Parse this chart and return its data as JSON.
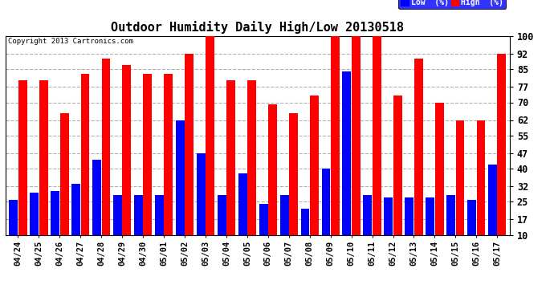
{
  "title": "Outdoor Humidity Daily High/Low 20130518",
  "copyright": "Copyright 2013 Cartronics.com",
  "legend_low": "Low  (%)",
  "legend_high": "High  (%)",
  "dates": [
    "04/24",
    "04/25",
    "04/26",
    "04/27",
    "04/28",
    "04/29",
    "04/30",
    "05/01",
    "05/02",
    "05/03",
    "05/04",
    "05/05",
    "05/06",
    "05/07",
    "05/08",
    "05/09",
    "05/10",
    "05/11",
    "05/12",
    "05/13",
    "05/14",
    "05/15",
    "05/16",
    "05/17"
  ],
  "high": [
    80,
    80,
    65,
    83,
    90,
    87,
    83,
    83,
    92,
    100,
    80,
    80,
    69,
    65,
    73,
    100,
    100,
    100,
    73,
    90,
    70,
    62,
    62,
    92
  ],
  "low": [
    26,
    29,
    30,
    33,
    44,
    28,
    28,
    28,
    62,
    47,
    28,
    38,
    24,
    28,
    22,
    40,
    84,
    28,
    27,
    27,
    27,
    28,
    26,
    42
  ],
  "bar_color_high": "#ff0000",
  "bar_color_low": "#0000ff",
  "background_color": "#ffffff",
  "grid_color": "#b0b0b0",
  "ylim_min": 10,
  "ylim_max": 100,
  "yticks": [
    10,
    17,
    25,
    32,
    40,
    47,
    55,
    62,
    70,
    77,
    85,
    92,
    100
  ],
  "title_fontsize": 11,
  "tick_fontsize": 8.5,
  "xtick_fontsize": 7.5
}
